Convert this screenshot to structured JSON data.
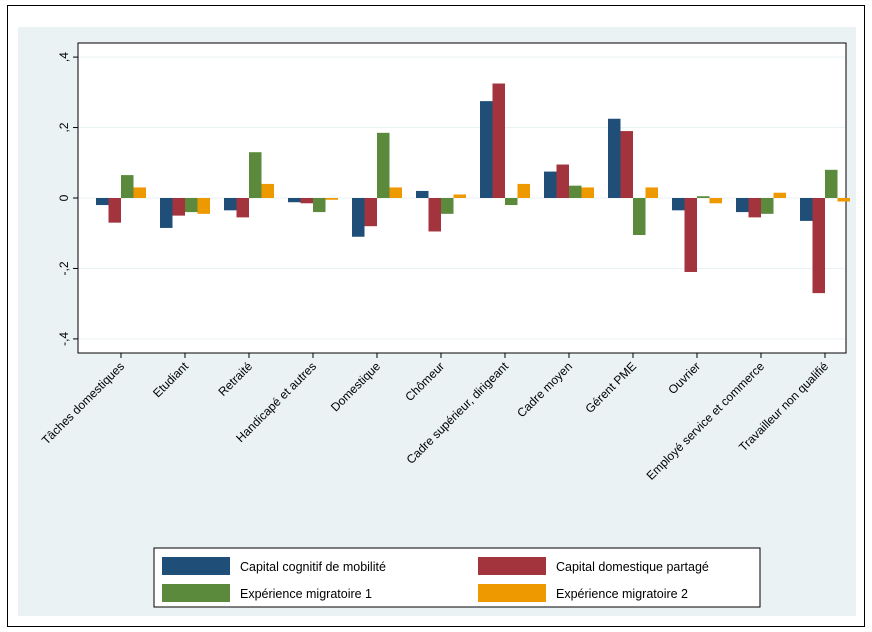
{
  "chart_data": {
    "type": "bar",
    "title": "",
    "xlabel": "",
    "ylabel": "",
    "ylim": [
      -0.44,
      0.44
    ],
    "yticks": [
      -0.4,
      -0.2,
      0,
      0.2,
      0.4
    ],
    "ytick_labels": [
      "-,4",
      "-,2",
      "0",
      ",2",
      ",4"
    ],
    "grid": true,
    "legend_position": "bottom",
    "categories": [
      "Tâches domestiques",
      "Etudiant",
      "Retraité",
      "Handicapé et autres",
      "Domestique",
      "Chômeur",
      "Cadre supérieur, dirigeant",
      "Cadre moyen",
      "Gérent PME",
      "Ouvrier",
      "Employé service et commerce",
      "Travailleur non qualifié"
    ],
    "series": [
      {
        "name": "Capital cognitif de mobilité",
        "color": "#1f4e79",
        "values": [
          -0.02,
          -0.085,
          -0.035,
          -0.012,
          -0.11,
          0.02,
          0.275,
          0.075,
          0.225,
          -0.035,
          -0.04,
          -0.065
        ]
      },
      {
        "name": "Capital domestique partagé",
        "color": "#a3333d",
        "values": [
          -0.07,
          -0.05,
          -0.055,
          -0.015,
          -0.08,
          -0.095,
          0.325,
          0.095,
          0.19,
          -0.21,
          -0.055,
          -0.27
        ]
      },
      {
        "name": "Expérience migratoire 1",
        "color": "#5b8a3c",
        "values": [
          0.065,
          -0.04,
          0.13,
          -0.04,
          0.185,
          -0.045,
          -0.02,
          0.035,
          -0.105,
          0.005,
          -0.045,
          0.08
        ]
      },
      {
        "name": "Expérience migratoire 2",
        "color": "#ee9900",
        "values": [
          0.03,
          -0.045,
          0.04,
          -0.005,
          0.03,
          0.01,
          0.04,
          0.03,
          0.03,
          -0.015,
          0.015,
          -0.01
        ]
      }
    ]
  },
  "colors": {
    "outer_background": "#eaf2f3",
    "plot_background": "#ffffff",
    "grid": "#eaf2f3"
  }
}
